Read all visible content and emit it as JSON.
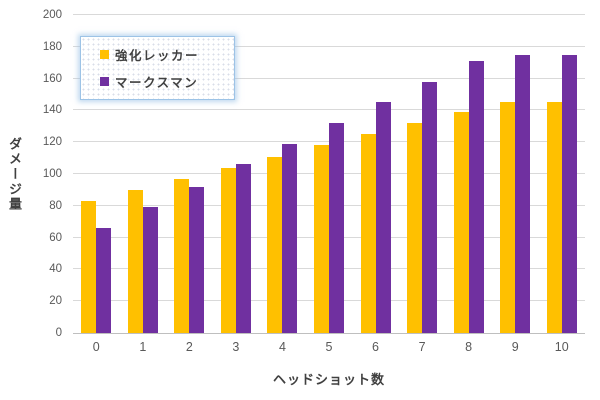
{
  "chart_data": {
    "type": "bar",
    "title": "",
    "xlabel": "ヘッドショット数",
    "ylabel": "ダメージ量",
    "ylim": [
      0,
      200
    ],
    "ytick_step": 20,
    "grid": true,
    "legend_position": "top-left",
    "categories": [
      "0",
      "1",
      "2",
      "3",
      "4",
      "5",
      "6",
      "7",
      "8",
      "9",
      "10"
    ],
    "series": [
      {
        "name": "強化レッカー",
        "color": "#FFC000",
        "values": [
          83,
          90,
          97,
          104,
          111,
          118,
          125,
          132,
          139,
          145,
          145
        ]
      },
      {
        "name": "マークスマン",
        "color": "#7030A0",
        "values": [
          66,
          79,
          92,
          106,
          119,
          132,
          145,
          158,
          171,
          175,
          175
        ]
      }
    ],
    "colors": {
      "gridline": "#D9D9D9",
      "axis_line": "#BFBFBF",
      "tick_label": "#595959",
      "axis_title": "#404040",
      "legend_border": "#9DC3E6"
    }
  }
}
